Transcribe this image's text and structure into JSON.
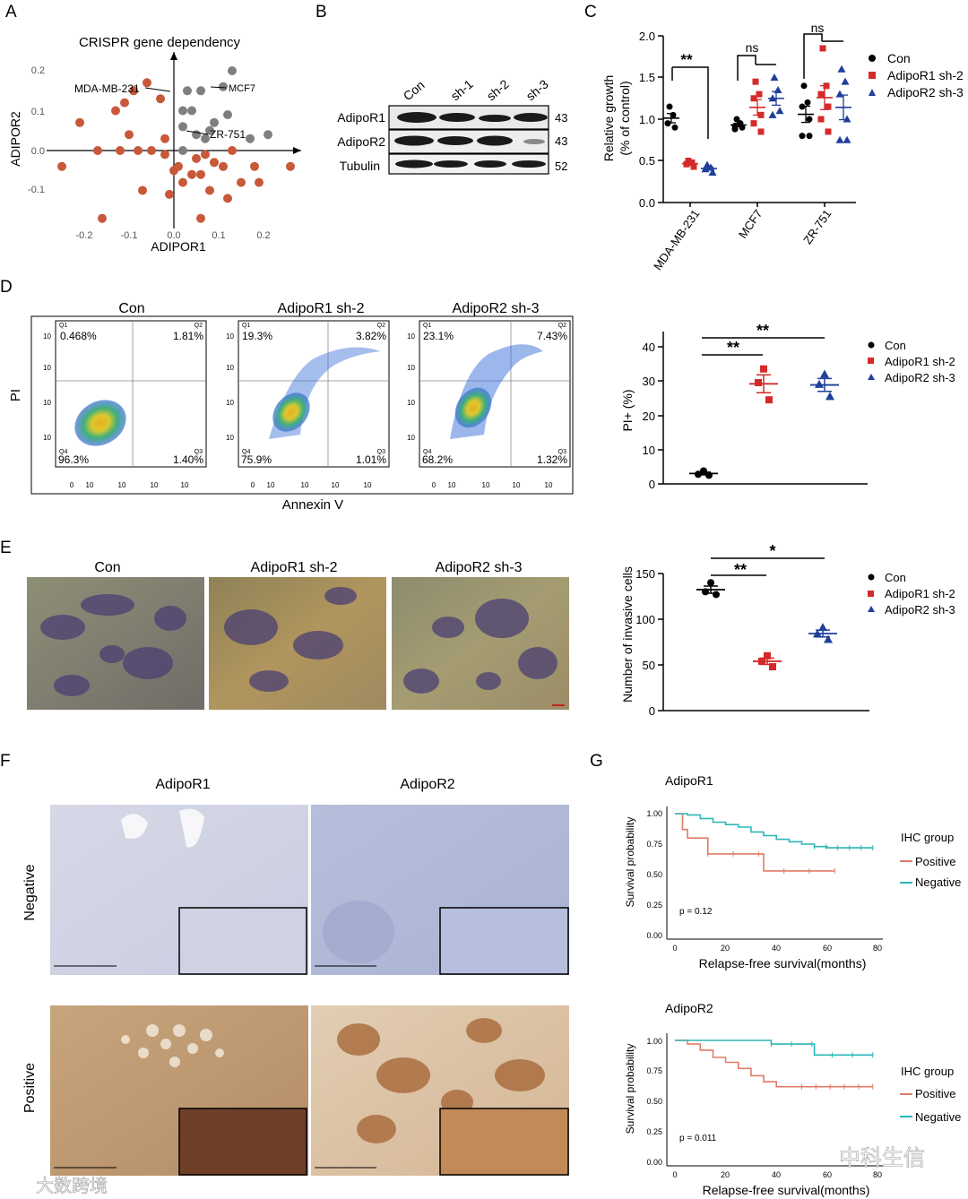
{
  "figure": {
    "panel_labels": [
      "A",
      "B",
      "C",
      "D",
      "E",
      "F",
      "G"
    ],
    "watermark": {
      "left": "大数跨境",
      "right": "中科生信"
    }
  },
  "colors": {
    "con": "#000000",
    "adipor1": "#d42a2a",
    "adipor2": "#1f3f99",
    "dep_positive": "#c8583a",
    "dep_gray": "#7f7f7f",
    "km_positive": "#e07b67",
    "km_negative": "#2cb6b6"
  },
  "panelA": {
    "title": "CRISPR gene dependency",
    "xlabel": "ADIPOR1",
    "ylabel": "ADIPOR2",
    "xticks": [
      "-0.2",
      "-0.1",
      "0.0",
      "0.1",
      "0.2"
    ],
    "yticks": [
      "0.2",
      "0.1",
      "0.0",
      "-0.1"
    ],
    "annotations": [
      "MDA-MB-231",
      "MCF7",
      "ZR-751"
    ]
  },
  "panelB": {
    "lanes": [
      "Con",
      "sh-1",
      "sh-2",
      "sh-3"
    ],
    "rows": [
      {
        "name": "AdipoR1",
        "kda": "43"
      },
      {
        "name": "AdipoR2",
        "kda": "43"
      },
      {
        "name": "Tubulin",
        "kda": "52"
      }
    ]
  },
  "panelC": {
    "ylabel": "Relative growth",
    "ylabel2": "(% of control)",
    "groups": [
      "MDA-MB-231",
      "MCF7",
      "ZR-751"
    ],
    "significance": [
      "**",
      "ns",
      "ns"
    ],
    "yticks": [
      "0.0",
      "0.5",
      "1.0",
      "1.5",
      "2.0"
    ],
    "legend": [
      "Con",
      "AdipoR1 sh-2",
      "AdipoR2 sh-3"
    ]
  },
  "panelD": {
    "flow_titles": [
      "Con",
      "AdipoR1 sh-2",
      "AdipoR2 sh-3"
    ],
    "quadrants": [
      {
        "q1": "0.468%",
        "q2": "1.81%",
        "q3": "1.40%",
        "q4": "96.3%"
      },
      {
        "q1": "19.3%",
        "q2": "3.82%",
        "q3": "1.01%",
        "q4": "75.9%"
      },
      {
        "q1": "23.1%",
        "q2": "7.43%",
        "q3": "1.32%",
        "q4": "68.2%"
      }
    ],
    "quad_names": [
      "Q1",
      "Q2",
      "Q3",
      "Q4"
    ],
    "flow_xticks": [
      "0",
      "10",
      "10",
      "10",
      "10"
    ],
    "flow_xlabel": "Annexin V",
    "flow_ylabel": "PI",
    "ylabel": "PI+ (%)",
    "yticks": [
      "0",
      "10",
      "20",
      "30",
      "40"
    ],
    "sig": [
      "**",
      "**"
    ],
    "legend": [
      "Con",
      "AdipoR1 sh-2",
      "AdipoR2 sh-3"
    ]
  },
  "panelE": {
    "image_titles": [
      "Con",
      "AdipoR1 sh-2",
      "AdipoR2 sh-3"
    ],
    "ylabel": "Number of invasive cells",
    "yticks": [
      "0",
      "50",
      "100",
      "150"
    ],
    "sig": [
      "**",
      "*"
    ],
    "legend": [
      "Con",
      "AdipoR1 sh-2",
      "AdipoR2 sh-3"
    ]
  },
  "panelF": {
    "columns": [
      "AdipoR1",
      "AdipoR2"
    ],
    "rows": [
      "Negative",
      "Positive"
    ]
  },
  "panelG": {
    "plots": [
      {
        "title": "AdipoR1",
        "pvalue": "p = 0.12"
      },
      {
        "title": "AdipoR2",
        "pvalue": "p = 0.011"
      }
    ],
    "ylabel": "Survival probability",
    "xlabel": "Relapse-free survival(months)",
    "xticks": [
      "0",
      "20",
      "40",
      "60",
      "80"
    ],
    "yticks": [
      "0.00",
      "0.25",
      "0.50",
      "0.75",
      "1.00"
    ],
    "legend_title": "IHC group",
    "legend": [
      "Positive",
      "Negative"
    ]
  },
  "chart_data": [
    {
      "id": "A",
      "type": "scatter",
      "title": "CRISPR gene dependency",
      "xlabel": "ADIPOR1",
      "ylabel": "ADIPOR2",
      "xlim": [
        -0.27,
        0.27
      ],
      "ylim": [
        -0.18,
        0.23
      ],
      "series": [
        {
          "points": [
            [
              -0.25,
              -0.04
            ],
            [
              -0.21,
              0.07
            ],
            [
              -0.17,
              0.0
            ],
            [
              -0.12,
              0.0
            ],
            [
              -0.13,
              0.1
            ],
            [
              -0.11,
              0.12
            ],
            [
              -0.09,
              0.15
            ],
            [
              -0.06,
              0.17
            ],
            [
              -0.05,
              0.0
            ],
            [
              -0.03,
              0.13
            ],
            [
              -0.08,
              0.0
            ],
            [
              -0.1,
              0.04
            ],
            [
              -0.02,
              0.03
            ],
            [
              -0.07,
              -0.1
            ],
            [
              -0.02,
              -0.01
            ],
            [
              0.0,
              -0.05
            ],
            [
              0.01,
              -0.04
            ],
            [
              0.02,
              -0.08
            ],
            [
              0.05,
              -0.02
            ],
            [
              0.06,
              -0.06
            ],
            [
              0.08,
              -0.1
            ],
            [
              0.09,
              -0.03
            ],
            [
              0.13,
              0.0
            ],
            [
              0.15,
              -0.08
            ],
            [
              0.18,
              -0.04
            ],
            [
              0.19,
              -0.08
            ],
            [
              0.26,
              -0.04
            ],
            [
              0.07,
              -0.01
            ],
            [
              0.11,
              -0.04
            ],
            [
              -0.01,
              -0.11
            ],
            [
              0.06,
              -0.17
            ],
            [
              0.12,
              -0.12
            ],
            [
              -0.16,
              -0.17
            ],
            [
              0.04,
              -0.06
            ]
          ]
        },
        {
          "points": [
            [
              0.13,
              0.2
            ],
            [
              0.11,
              0.16
            ],
            [
              0.03,
              0.15
            ],
            [
              0.06,
              0.15
            ],
            [
              0.02,
              0.1
            ],
            [
              0.04,
              0.1
            ],
            [
              0.12,
              0.09
            ],
            [
              0.09,
              0.07
            ],
            [
              0.08,
              0.05
            ],
            [
              0.02,
              0.06
            ],
            [
              0.05,
              0.04
            ],
            [
              0.07,
              0.03
            ],
            [
              0.17,
              0.03
            ],
            [
              0.21,
              0.04
            ],
            [
              0.02,
              0.0
            ]
          ]
        }
      ]
    },
    {
      "id": "C",
      "type": "scatter",
      "ylabel": "Relative growth (% of control)",
      "ylim": [
        0,
        2.0
      ],
      "categories": [
        "MDA-MB-231",
        "MCF7",
        "ZR-751"
      ],
      "series": [
        {
          "name": "Con",
          "values": [
            [
              1.15,
              1.05,
              0.95,
              0.9
            ],
            [
              1.0,
              0.95,
              0.92,
              0.9,
              0.88
            ],
            [
              1.4,
              1.2,
              1.15,
              1.0,
              0.8,
              0.8
            ]
          ]
        },
        {
          "name": "AdipoR1 sh-2",
          "values": [
            [
              0.5,
              0.48,
              0.46,
              0.43
            ],
            [
              1.45,
              1.3,
              1.25,
              1.05,
              0.95,
              0.85
            ],
            [
              1.85,
              1.4,
              1.3,
              1.15,
              1.0,
              0.85
            ]
          ]
        },
        {
          "name": "AdipoR2 sh-3",
          "values": [
            [
              0.45,
              0.42,
              0.4,
              0.36
            ],
            [
              1.5,
              1.35,
              1.25,
              1.1,
              1.05
            ],
            [
              1.6,
              1.45,
              1.3,
              1.0,
              0.75,
              0.75
            ]
          ]
        }
      ]
    },
    {
      "id": "D",
      "type": "scatter",
      "ylabel": "PI+ (%)",
      "ylim": [
        0,
        40
      ],
      "categories": [
        "Con",
        "AdipoR1 sh-2",
        "AdipoR2 sh-3"
      ],
      "series": [
        {
          "name": "Con",
          "values": [
            3.8,
            2.8,
            2.5
          ]
        },
        {
          "name": "AdipoR1 sh-2",
          "values": [
            33.5,
            29.5,
            24.5
          ]
        },
        {
          "name": "AdipoR2 sh-3",
          "values": [
            32.0,
            29.0,
            25.5
          ]
        }
      ]
    },
    {
      "id": "E",
      "type": "scatter",
      "ylabel": "Number of invasive cells",
      "ylim": [
        0,
        160
      ],
      "categories": [
        "Con",
        "AdipoR1 sh-2",
        "AdipoR2 sh-3"
      ],
      "series": [
        {
          "name": "Con",
          "values": [
            140,
            130,
            127
          ]
        },
        {
          "name": "AdipoR1 sh-2",
          "values": [
            60,
            54,
            48
          ]
        },
        {
          "name": "AdipoR2 sh-3",
          "values": [
            91,
            84,
            78
          ]
        }
      ]
    },
    {
      "id": "G1",
      "type": "line",
      "title": "AdipoR1",
      "xlabel": "Relapse-free survival(months)",
      "ylabel": "Survival probability",
      "xlim": [
        0,
        80
      ],
      "ylim": [
        0,
        1
      ],
      "series": [
        {
          "name": "Positive",
          "x": [
            0,
            3,
            3,
            5,
            5,
            13,
            13,
            35,
            35,
            63
          ],
          "y": [
            1,
            1,
            0.87,
            0.87,
            0.8,
            0.8,
            0.67,
            0.67,
            0.53,
            0.53
          ]
        },
        {
          "name": "Negative",
          "x": [
            0,
            5,
            10,
            15,
            20,
            25,
            30,
            35,
            40,
            45,
            50,
            55,
            60,
            70,
            78
          ],
          "y": [
            1,
            0.99,
            0.96,
            0.93,
            0.91,
            0.89,
            0.85,
            0.82,
            0.79,
            0.77,
            0.75,
            0.73,
            0.72,
            0.72,
            0.72
          ]
        }
      ]
    },
    {
      "id": "G2",
      "type": "line",
      "title": "AdipoR2",
      "xlabel": "Relapse-free survival(months)",
      "ylabel": "Survival probability",
      "xlim": [
        0,
        80
      ],
      "ylim": [
        0,
        1
      ],
      "series": [
        {
          "name": "Positive",
          "x": [
            0,
            5,
            10,
            15,
            20,
            25,
            30,
            35,
            40,
            50,
            60,
            70,
            78
          ],
          "y": [
            1,
            0.97,
            0.92,
            0.86,
            0.82,
            0.77,
            0.71,
            0.66,
            0.62,
            0.62,
            0.62,
            0.62,
            0.62
          ]
        },
        {
          "name": "Negative",
          "x": [
            0,
            38,
            38,
            55,
            55,
            78
          ],
          "y": [
            1,
            1,
            0.97,
            0.97,
            0.88,
            0.88
          ]
        }
      ]
    }
  ]
}
